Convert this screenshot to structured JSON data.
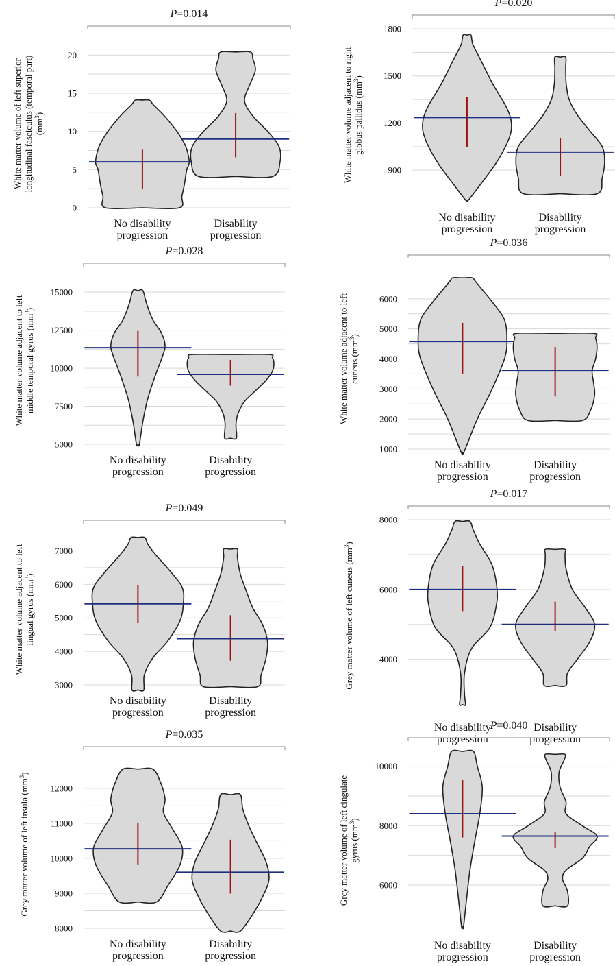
{
  "chart_data": [
    {
      "type": "violin",
      "title": "P=0.014",
      "title_p": "P",
      "title_rest": "=0.014",
      "ylabel_lines": [
        "White matter volume of left superior",
        "longitudinal fasciculus (temporal part)",
        "(mm3)"
      ],
      "yticks": [
        0,
        5,
        10,
        15,
        20
      ],
      "ylim": [
        0,
        22
      ],
      "categories": [
        "No disability progression",
        "Disability progression"
      ],
      "category_lines": [
        [
          "No disability",
          "progression"
        ],
        [
          "Disability",
          "progression"
        ]
      ],
      "series": [
        {
          "min": 0.0,
          "max": 14.1,
          "median": 6.0,
          "ci": [
            2.5,
            7.6
          ],
          "shape": [
            [
              0.0,
              0.75
            ],
            [
              1.5,
              0.8
            ],
            [
              3,
              0.85
            ],
            [
              5,
              0.9
            ],
            [
              6,
              0.95
            ],
            [
              8,
              0.88
            ],
            [
              10,
              0.7
            ],
            [
              12,
              0.45
            ],
            [
              13.5,
              0.22
            ],
            [
              14.1,
              0.14
            ]
          ]
        },
        {
          "min": 4.1,
          "max": 20.4,
          "median": 9.0,
          "ci": [
            6.6,
            12.4
          ],
          "shape": [
            [
              4.1,
              0.75
            ],
            [
              6,
              0.9
            ],
            [
              8,
              0.88
            ],
            [
              10,
              0.65
            ],
            [
              12,
              0.35
            ],
            [
              14,
              0.18
            ],
            [
              16,
              0.28
            ],
            [
              18,
              0.4
            ],
            [
              19.5,
              0.35
            ],
            [
              20.4,
              0.3
            ]
          ]
        }
      ]
    },
    {
      "type": "violin",
      "title": "P=0.020",
      "title_p": "P",
      "title_rest": "=0.020",
      "ylabel_lines": [
        "White matter volume adjacent to right",
        "globus pallidus (mm3)"
      ],
      "yticks": [
        900,
        1200,
        1500,
        1800
      ],
      "ylim": [
        700,
        1800
      ],
      "categories": [
        "No disability progression",
        "Disability progression"
      ],
      "category_lines": [
        [
          "No disability",
          "progression"
        ],
        [
          "Disability",
          "progression"
        ]
      ],
      "series": [
        {
          "min": 710,
          "max": 1760,
          "median": 1235,
          "ci": [
            1045,
            1365
          ],
          "shape": [
            [
              710,
              0.03
            ],
            [
              800,
              0.25
            ],
            [
              950,
              0.6
            ],
            [
              1100,
              0.85
            ],
            [
              1200,
              0.9
            ],
            [
              1300,
              0.8
            ],
            [
              1450,
              0.52
            ],
            [
              1600,
              0.28
            ],
            [
              1700,
              0.12
            ],
            [
              1760,
              0.08
            ]
          ]
        },
        {
          "min": 750,
          "max": 1620,
          "median": 1015,
          "ci": [
            865,
            1105
          ],
          "shape": [
            [
              750,
              0.75
            ],
            [
              850,
              0.85
            ],
            [
              950,
              0.9
            ],
            [
              1050,
              0.85
            ],
            [
              1150,
              0.6
            ],
            [
              1250,
              0.35
            ],
            [
              1350,
              0.18
            ],
            [
              1450,
              0.12
            ],
            [
              1550,
              0.11
            ],
            [
              1620,
              0.11
            ]
          ]
        }
      ]
    },
    {
      "type": "violin",
      "title": "P=0.028",
      "title_p": "P",
      "title_rest": "=0.028",
      "ylabel_lines": [
        "White matter volume adjacent to left",
        "middle temporal gyrus (mm3)"
      ],
      "yticks": [
        5000,
        7500,
        10000,
        12500,
        15000
      ],
      "ylim": [
        5000,
        16000
      ],
      "categories": [
        "No disability progression",
        "Disability progression"
      ],
      "category_lines": [
        [
          "No disability",
          "progression"
        ],
        [
          "Disability",
          "progression"
        ]
      ],
      "series": [
        {
          "min": 5000,
          "max": 15100,
          "median": 11350,
          "ci": [
            9450,
            12450
          ],
          "shape": [
            [
              5000,
              0.03
            ],
            [
              6500,
              0.1
            ],
            [
              8000,
              0.2
            ],
            [
              9500,
              0.35
            ],
            [
              10800,
              0.5
            ],
            [
              11500,
              0.55
            ],
            [
              12300,
              0.48
            ],
            [
              13200,
              0.3
            ],
            [
              14200,
              0.18
            ],
            [
              15100,
              0.1
            ]
          ]
        },
        {
          "min": 5400,
          "max": 10900,
          "median": 9600,
          "ci": [
            8850,
            10550
          ],
          "shape": [
            [
              5400,
              0.12
            ],
            [
              6300,
              0.11
            ],
            [
              7000,
              0.15
            ],
            [
              7800,
              0.28
            ],
            [
              8500,
              0.5
            ],
            [
              9200,
              0.72
            ],
            [
              9800,
              0.85
            ],
            [
              10300,
              0.88
            ],
            [
              10700,
              0.85
            ],
            [
              10900,
              0.78
            ]
          ]
        }
      ]
    },
    {
      "type": "violin",
      "title": "P=0.036",
      "title_p": "P",
      "title_rest": "=0.036",
      "ylabel_lines": [
        "White matter volume adjacent to left",
        "cuneus (mm3)"
      ],
      "yticks": [
        1000,
        2000,
        3000,
        4000,
        5000,
        6000
      ],
      "ylim": [
        1000,
        7000
      ],
      "categories": [
        "No disability progression",
        "Disability progression"
      ],
      "category_lines": [
        [
          "No disability",
          "progression"
        ],
        [
          "Disability",
          "progression"
        ]
      ],
      "series": [
        {
          "min": 900,
          "max": 6700,
          "median": 4580,
          "ci": [
            3500,
            5200
          ],
          "shape": [
            [
              900,
              0.03
            ],
            [
              2000,
              0.3
            ],
            [
              3000,
              0.6
            ],
            [
              4000,
              0.85
            ],
            [
              4600,
              0.9
            ],
            [
              5300,
              0.85
            ],
            [
              5900,
              0.6
            ],
            [
              6300,
              0.4
            ],
            [
              6600,
              0.25
            ],
            [
              6700,
              0.2
            ]
          ]
        },
        {
          "min": 1950,
          "max": 4850,
          "median": 3620,
          "ci": [
            2750,
            4400
          ],
          "shape": [
            [
              1950,
              0.55
            ],
            [
              2300,
              0.72
            ],
            [
              2800,
              0.8
            ],
            [
              3200,
              0.78
            ],
            [
              3600,
              0.75
            ],
            [
              4000,
              0.82
            ],
            [
              4400,
              0.85
            ],
            [
              4700,
              0.82
            ],
            [
              4850,
              0.78
            ]
          ]
        }
      ]
    },
    {
      "type": "violin",
      "title": "P=0.049",
      "title_p": "P",
      "title_rest": "=0.049",
      "ylabel_lines": [
        "White matter volume adjacent to left",
        "lingual gyrus (mm3)"
      ],
      "yticks": [
        3000,
        4000,
        5000,
        6000,
        7000
      ],
      "ylim": [
        3000,
        7500
      ],
      "categories": [
        "No disability progression",
        "Disability progression"
      ],
      "category_lines": [
        [
          "No disability",
          "progression"
        ],
        [
          "Disability",
          "progression"
        ]
      ],
      "series": [
        {
          "min": 2850,
          "max": 7400,
          "median": 5420,
          "ci": [
            4850,
            5970
          ],
          "shape": [
            [
              2850,
              0.12
            ],
            [
              3300,
              0.13
            ],
            [
              3800,
              0.3
            ],
            [
              4300,
              0.6
            ],
            [
              4900,
              0.85
            ],
            [
              5400,
              0.92
            ],
            [
              5900,
              0.9
            ],
            [
              6400,
              0.65
            ],
            [
              6900,
              0.35
            ],
            [
              7200,
              0.2
            ],
            [
              7400,
              0.14
            ]
          ]
        },
        {
          "min": 2950,
          "max": 7050,
          "median": 4380,
          "ci": [
            3720,
            5080
          ],
          "shape": [
            [
              2950,
              0.55
            ],
            [
              3300,
              0.62
            ],
            [
              3800,
              0.72
            ],
            [
              4300,
              0.75
            ],
            [
              4800,
              0.65
            ],
            [
              5300,
              0.45
            ],
            [
              5800,
              0.32
            ],
            [
              6300,
              0.2
            ],
            [
              6800,
              0.14
            ],
            [
              7050,
              0.14
            ]
          ]
        }
      ]
    },
    {
      "type": "violin",
      "title": "P=0.017",
      "title_p": "P",
      "title_rest": "=0.017",
      "ylabel_lines": [
        "Grey matter volume of left cuneus (mm3)"
      ],
      "yticks": [
        4000,
        6000,
        8000
      ],
      "ylim": [
        2500,
        8000
      ],
      "categories": [
        "No disability progression",
        "Disability progression"
      ],
      "category_lines": [
        [
          "No disability",
          "progression"
        ],
        [
          "Disability",
          "progression"
        ]
      ],
      "series": [
        {
          "min": 2700,
          "max": 7950,
          "median": 6000,
          "ci": [
            5380,
            6680
          ],
          "shape": [
            [
              2700,
              0.06
            ],
            [
              3000,
              0.04
            ],
            [
              3600,
              0.04
            ],
            [
              4300,
              0.18
            ],
            [
              4900,
              0.55
            ],
            [
              5500,
              0.68
            ],
            [
              6000,
              0.7
            ],
            [
              6700,
              0.6
            ],
            [
              7300,
              0.35
            ],
            [
              7700,
              0.22
            ],
            [
              7950,
              0.15
            ]
          ]
        },
        {
          "min": 3250,
          "max": 7150,
          "median": 5000,
          "ci": [
            4800,
            5650
          ],
          "shape": [
            [
              3250,
              0.22
            ],
            [
              3600,
              0.25
            ],
            [
              4000,
              0.45
            ],
            [
              4500,
              0.7
            ],
            [
              5000,
              0.8
            ],
            [
              5500,
              0.6
            ],
            [
              6000,
              0.35
            ],
            [
              6600,
              0.22
            ],
            [
              7000,
              0.2
            ],
            [
              7150,
              0.2
            ]
          ]
        }
      ]
    },
    {
      "type": "violin",
      "title": "P=0.035",
      "title_p": "P",
      "title_rest": "=0.035",
      "ylabel_lines": [
        "Grey matter volume of left insula (mm3)"
      ],
      "yticks": [
        8000,
        9000,
        10000,
        11000,
        12000
      ],
      "ylim": [
        8000,
        12800
      ],
      "categories": [
        "No disability progression",
        "Disability progression"
      ],
      "category_lines": [
        [
          "No disability",
          "progression"
        ],
        [
          "Disability",
          "progression"
        ]
      ],
      "series": [
        {
          "min": 8750,
          "max": 12550,
          "median": 10270,
          "ci": [
            9820,
            11020
          ],
          "shape": [
            [
              8750,
              0.38
            ],
            [
              9200,
              0.6
            ],
            [
              9800,
              0.85
            ],
            [
              10300,
              0.9
            ],
            [
              10800,
              0.72
            ],
            [
              11300,
              0.52
            ],
            [
              11700,
              0.55
            ],
            [
              12200,
              0.45
            ],
            [
              12550,
              0.3
            ]
          ]
        },
        {
          "min": 7920,
          "max": 11820,
          "median": 9600,
          "ci": [
            8990,
            10530
          ],
          "shape": [
            [
              7920,
              0.2
            ],
            [
              8400,
              0.45
            ],
            [
              8900,
              0.65
            ],
            [
              9400,
              0.78
            ],
            [
              9900,
              0.72
            ],
            [
              10400,
              0.55
            ],
            [
              10900,
              0.38
            ],
            [
              11400,
              0.25
            ],
            [
              11820,
              0.2
            ]
          ]
        }
      ]
    },
    {
      "type": "violin",
      "title": "P=0.040",
      "title_p": "P",
      "title_rest": "=0.040",
      "ylabel_lines": [
        "Grey matter volume of left cingulate",
        "gyrus (mm3)"
      ],
      "yticks": [
        6000,
        8000,
        10000
      ],
      "ylim": [
        4500,
        10500
      ],
      "categories": [
        "No disability progression",
        "Disability progression"
      ],
      "category_lines": [
        [
          "No disability",
          "progression"
        ],
        [
          "Disability",
          "progression"
        ]
      ],
      "series": [
        {
          "min": 4600,
          "max": 10500,
          "median": 8400,
          "ci": [
            7600,
            9530
          ],
          "shape": [
            [
              4600,
              0.02
            ],
            [
              5500,
              0.08
            ],
            [
              6500,
              0.15
            ],
            [
              7500,
              0.25
            ],
            [
              8400,
              0.35
            ],
            [
              9300,
              0.4
            ],
            [
              10000,
              0.3
            ],
            [
              10500,
              0.22
            ]
          ]
        },
        {
          "min": 5300,
          "max": 10400,
          "median": 7650,
          "ci": [
            7250,
            7800
          ],
          "shape": [
            [
              5300,
              0.25
            ],
            [
              5800,
              0.25
            ],
            [
              6200,
              0.15
            ],
            [
              6500,
              0.22
            ],
            [
              6900,
              0.55
            ],
            [
              7300,
              0.7
            ],
            [
              7650,
              0.85
            ],
            [
              8000,
              0.55
            ],
            [
              8400,
              0.22
            ],
            [
              8800,
              0.22
            ],
            [
              9300,
              0.1
            ],
            [
              9800,
              0.08
            ],
            [
              10200,
              0.18
            ],
            [
              10400,
              0.2
            ]
          ]
        }
      ]
    }
  ]
}
